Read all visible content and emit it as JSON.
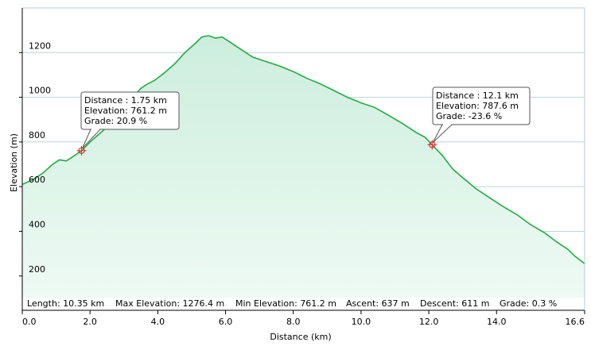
{
  "chart_data": {
    "type": "area",
    "title": "",
    "xlabel": "Distance  (km)",
    "ylabel": "Elevation (m)",
    "xlim": [
      0,
      16.6
    ],
    "ylim": [
      50,
      1400
    ],
    "x_ticks": [
      "0.0",
      "2.0",
      "4.0",
      "6.0",
      "8.0",
      "10.0",
      "12.0",
      "14.0",
      "16.6"
    ],
    "y_ticks": [
      "200",
      "400",
      "600",
      "800",
      "1000",
      "1200"
    ],
    "grid": true,
    "line_color": "#22aa44",
    "fill_top_color": "#cceedd",
    "fill_bottom_color": "#eefaf4",
    "series": [
      {
        "x": [
          0.0,
          0.3,
          0.6,
          0.9,
          1.1,
          1.3,
          1.5,
          1.75,
          2.0,
          2.3,
          2.6,
          2.9,
          3.2,
          3.5,
          3.7,
          3.9,
          4.2,
          4.5,
          4.8,
          5.1,
          5.3,
          5.5,
          5.7,
          5.9,
          6.1,
          6.4,
          6.8,
          7.2,
          7.6,
          8.0,
          8.4,
          8.8,
          9.2,
          9.6,
          10.0,
          10.4,
          10.8,
          11.2,
          11.6,
          11.9,
          12.1,
          12.4,
          12.7,
          13.0,
          13.4,
          13.8,
          14.2,
          14.6,
          15.0,
          15.4,
          15.8,
          16.1,
          16.3,
          16.6
        ],
        "y": [
          610,
          630,
          660,
          700,
          720,
          715,
          735,
          761,
          800,
          840,
          880,
          930,
          990,
          1040,
          1060,
          1075,
          1110,
          1150,
          1200,
          1240,
          1270,
          1276,
          1265,
          1270,
          1250,
          1220,
          1180,
          1160,
          1140,
          1115,
          1085,
          1060,
          1030,
          1000,
          975,
          955,
          920,
          885,
          845,
          820,
          787,
          740,
          680,
          640,
          590,
          550,
          510,
          475,
          430,
          395,
          350,
          320,
          290,
          255
        ]
      }
    ],
    "stats": [
      "Length: 10.35 km",
      "Max Elevation: 1276.4 m",
      "Min Elevation: 761.2 m",
      "Ascent: 637 m",
      "Descent: 611 m",
      "Grade: 0.3 %"
    ],
    "callouts": [
      {
        "x": 1.75,
        "y": 761.2,
        "lines": [
          "Distance  : 1.75 km",
          "Elevation: 761.2 m",
          "Grade: 20.9 %"
        ]
      },
      {
        "x": 12.1,
        "y": 787.6,
        "lines": [
          "Distance  : 12.1 km",
          "Elevation: 787.6 m",
          "Grade: -23.6 %"
        ]
      }
    ]
  }
}
